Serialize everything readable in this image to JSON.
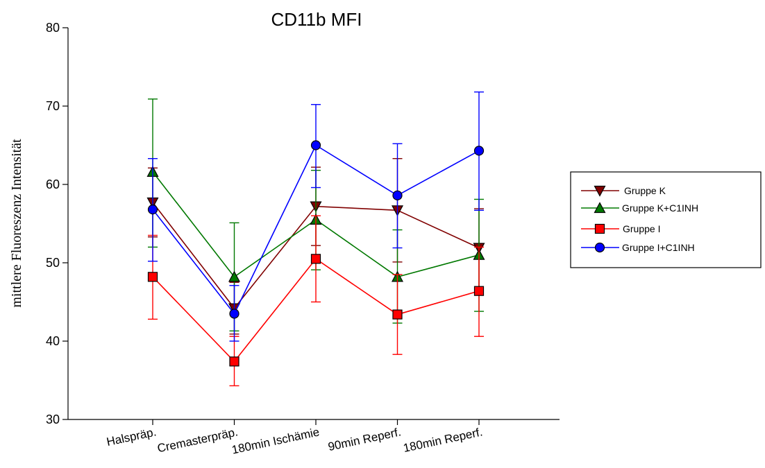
{
  "chart_data": {
    "type": "line",
    "title": "CD11b MFI",
    "xlabel": "",
    "ylabel": "mittlere Fluoreszenz Intensität",
    "ylim": [
      30,
      80
    ],
    "yticks": [
      30,
      40,
      50,
      60,
      70,
      80
    ],
    "categories": [
      "Halspräp.",
      "Cremasterpräp.",
      "180min Ischämie",
      "90min Reperf.",
      "180min Reperf."
    ],
    "grid": false,
    "legend_position": "right",
    "series": [
      {
        "name": "Gruppe K",
        "color": "#800000",
        "marker": "triangle-down",
        "values": [
          57.7,
          44.2,
          57.2,
          56.7,
          51.9
        ],
        "err_low": [
          53.3,
          40.9,
          52.2,
          50.1,
          46.9
        ],
        "err_high": [
          62.1,
          47.5,
          62.2,
          63.3,
          56.9
        ]
      },
      {
        "name": "Gruppe K+C1INH",
        "color": "#007800",
        "marker": "triangle-up",
        "values": [
          61.6,
          48.2,
          55.5,
          48.2,
          51.0
        ],
        "err_low": [
          52.0,
          41.3,
          49.1,
          42.3,
          43.8
        ],
        "err_high": [
          70.9,
          55.1,
          61.8,
          54.2,
          58.1
        ]
      },
      {
        "name": "Gruppe I",
        "color": "#ff0000",
        "marker": "square",
        "values": [
          48.2,
          37.4,
          50.5,
          43.4,
          46.4
        ],
        "err_low": [
          42.8,
          34.3,
          45.0,
          38.3,
          40.6
        ],
        "err_high": [
          53.5,
          40.6,
          56.0,
          48.5,
          52.0
        ]
      },
      {
        "name": "Gruppe I+C1INH",
        "color": "#0000ff",
        "marker": "circle",
        "values": [
          56.8,
          43.5,
          65.0,
          58.6,
          64.3
        ],
        "err_low": [
          50.2,
          40.0,
          59.6,
          51.9,
          56.7
        ],
        "err_high": [
          63.3,
          47.1,
          70.2,
          65.2,
          71.8
        ]
      }
    ]
  }
}
